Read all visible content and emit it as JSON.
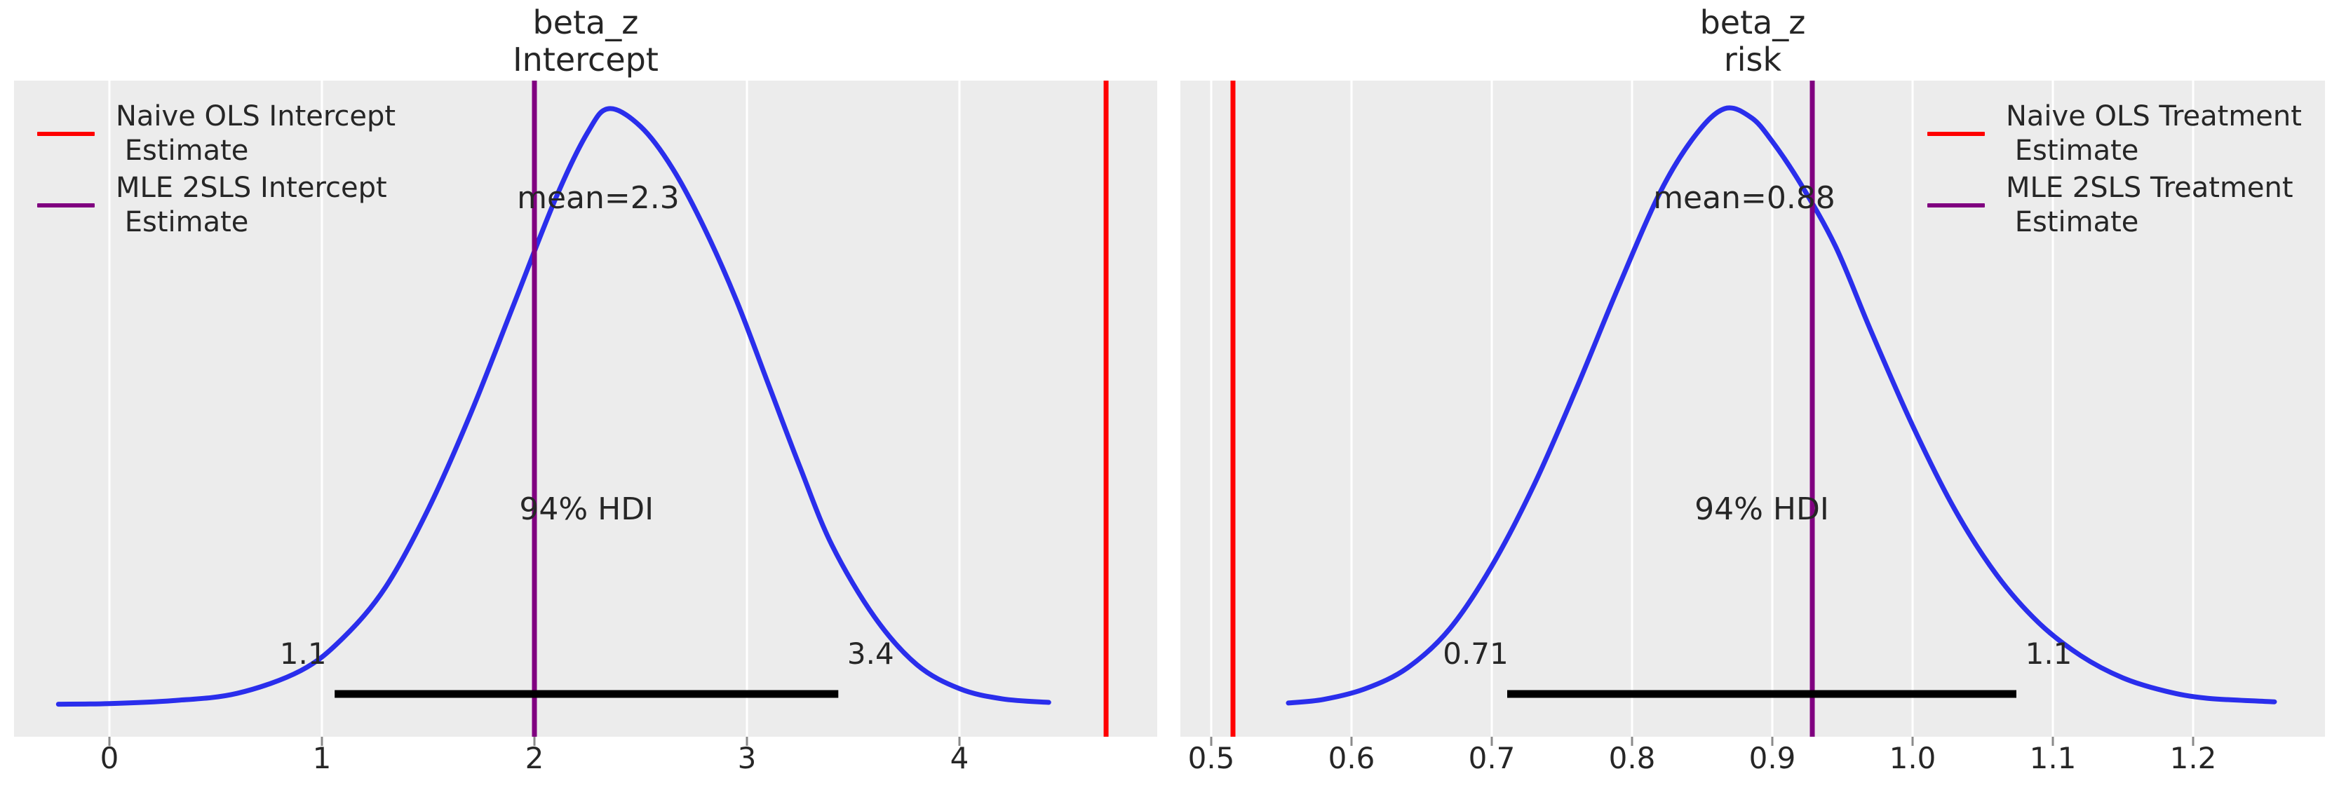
{
  "figure": {
    "background": "#ffffff",
    "plot_background": "#ececec",
    "grid_color": "#ffffff",
    "text_color": "#262626",
    "tick_mark_color": "#8a8a8a",
    "hdi_bar_color": "#000000",
    "kde_line_color": "#2a2eec"
  },
  "chart_data": [
    {
      "type": "area",
      "title_line1": "beta_z",
      "title_line2": "Intercept",
      "mean": 2.3,
      "mean_label": "mean=2.3",
      "hdi_text": "94% HDI",
      "hdi_interval": [
        1.06,
        3.43
      ],
      "hdi_low_label": "1.1",
      "hdi_high_label": "3.4",
      "xlim": [
        -0.45,
        4.93
      ],
      "xtick_values": [
        0,
        1,
        2,
        3,
        4
      ],
      "xtick_labels": [
        "0",
        "1",
        "2",
        "3",
        "4"
      ],
      "ref_lines": [
        {
          "name": "naive-ols-intercept",
          "x": 4.69,
          "color": "#ff0000",
          "label_line1": "Naive OLS Intercept",
          "label_line2": " Estimate"
        },
        {
          "name": "mle-2sls-intercept",
          "x": 2.0,
          "color": "#800080",
          "label_line1": "MLE 2SLS Intercept",
          "label_line2": " Estimate"
        }
      ],
      "kde_x": [
        -0.24,
        0.0,
        0.3,
        0.6,
        0.9,
        1.1,
        1.3,
        1.5,
        1.7,
        1.9,
        2.1,
        2.25,
        2.35,
        2.5,
        2.65,
        2.8,
        2.95,
        3.1,
        3.25,
        3.4,
        3.6,
        3.8,
        4.0,
        4.2,
        4.42
      ],
      "kde_density": [
        0.004,
        0.005,
        0.01,
        0.022,
        0.06,
        0.115,
        0.2,
        0.33,
        0.49,
        0.67,
        0.85,
        0.96,
        1.0,
        0.97,
        0.9,
        0.8,
        0.68,
        0.54,
        0.4,
        0.27,
        0.15,
        0.07,
        0.03,
        0.013,
        0.007
      ]
    },
    {
      "type": "area",
      "title_line1": "beta_z",
      "title_line2": "risk",
      "mean": 0.88,
      "mean_label": "mean=0.88",
      "hdi_text": "94% HDI",
      "hdi_interval": [
        0.711,
        1.074
      ],
      "hdi_low_label": "0.71",
      "hdi_high_label": "1.1",
      "xlim": [
        0.478,
        1.294
      ],
      "xtick_values": [
        0.5,
        0.6,
        0.7,
        0.8,
        0.9,
        1.0,
        1.1,
        1.2
      ],
      "xtick_labels": [
        "0.5",
        "0.6",
        "0.7",
        "0.8",
        "0.9",
        "1.0",
        "1.1",
        "1.2"
      ],
      "ref_lines": [
        {
          "name": "naive-ols-treatment",
          "x": 0.5155,
          "color": "#ff0000",
          "label_line1": "Naive OLS Treatment",
          "label_line2": " Estimate"
        },
        {
          "name": "mle-2sls-treatment",
          "x": 0.9285,
          "color": "#800080",
          "label_line1": "MLE 2SLS Treatment",
          "label_line2": " Estimate"
        }
      ],
      "kde_x": [
        0.555,
        0.58,
        0.61,
        0.64,
        0.67,
        0.7,
        0.73,
        0.76,
        0.79,
        0.82,
        0.845,
        0.866,
        0.885,
        0.9,
        0.92,
        0.945,
        0.97,
        1.0,
        1.03,
        1.06,
        1.09,
        1.12,
        1.15,
        1.18,
        1.21,
        1.258
      ],
      "kde_density": [
        0.006,
        0.012,
        0.03,
        0.065,
        0.13,
        0.235,
        0.37,
        0.53,
        0.7,
        0.86,
        0.955,
        1.0,
        0.985,
        0.945,
        0.875,
        0.77,
        0.63,
        0.47,
        0.33,
        0.22,
        0.14,
        0.085,
        0.048,
        0.026,
        0.014,
        0.008
      ]
    }
  ]
}
